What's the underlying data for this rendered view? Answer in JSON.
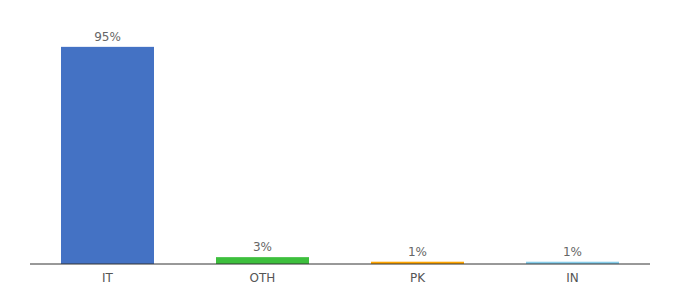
{
  "chart_data": {
    "type": "bar",
    "categories": [
      "IT",
      "OTH",
      "PK",
      "IN"
    ],
    "values": [
      95,
      3,
      1,
      1
    ],
    "value_labels": [
      "95%",
      "3%",
      "1%",
      "1%"
    ],
    "colors": [
      "#4472c4",
      "#3dbf3d",
      "#ffa500",
      "#87ceeb"
    ],
    "ylim": [
      0,
      105
    ],
    "data_labels": true,
    "tick_labels": "x",
    "grid": false
  }
}
